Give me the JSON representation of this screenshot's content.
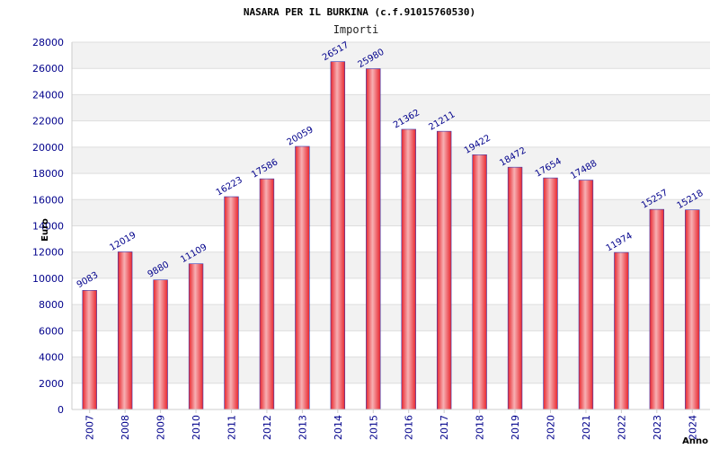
{
  "chart_data": {
    "type": "bar",
    "title": "NASARA PER IL BURKINA (c.f.91015760530)",
    "subtitle": "Importi",
    "xlabel": "Anno",
    "ylabel": "Euro",
    "categories": [
      "2007",
      "2008",
      "2009",
      "2010",
      "2011",
      "2012",
      "2013",
      "2014",
      "2015",
      "2016",
      "2017",
      "2018",
      "2019",
      "2020",
      "2021",
      "2022",
      "2023",
      "2024"
    ],
    "values": [
      9083,
      12019,
      9880,
      11109,
      16223,
      17586,
      20059,
      26517,
      25980,
      21362,
      21211,
      19422,
      18472,
      17654,
      17488,
      11974,
      15257,
      15218
    ],
    "ylim": [
      0,
      28000
    ],
    "ytick_step": 2000,
    "grid": true,
    "colors": {
      "bar": "#e8262e",
      "bar_highlight": "#f7b0b3",
      "bar_edge": "#3a3ab0",
      "band": "#f2f2f2",
      "tick_text": "#00008b"
    }
  }
}
